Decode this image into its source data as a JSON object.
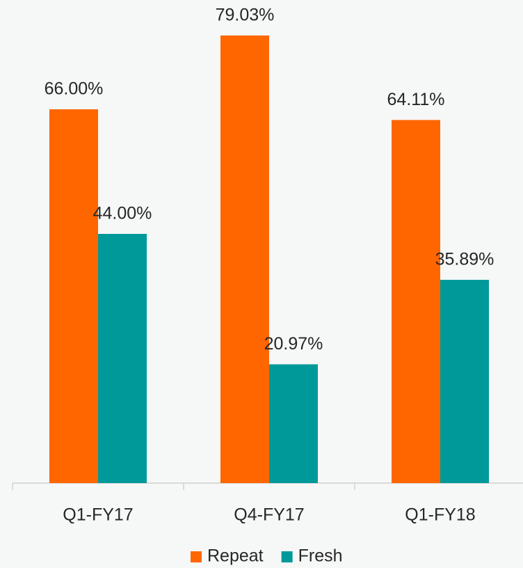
{
  "chart_data": {
    "type": "bar",
    "categories": [
      "Q1-FY17",
      "Q4-FY17",
      "Q1-FY18"
    ],
    "series": [
      {
        "name": "Repeat",
        "color": "#ff6600",
        "values": [
          66.0,
          79.03,
          64.11
        ],
        "value_labels": [
          "66.00%",
          "79.03%",
          "64.11%"
        ]
      },
      {
        "name": "Fresh",
        "color": "#009999",
        "values": [
          44.0,
          20.97,
          35.89
        ],
        "value_labels": [
          "44.00%",
          "20.97%",
          "35.89%"
        ]
      }
    ],
    "legend": "bottom"
  }
}
